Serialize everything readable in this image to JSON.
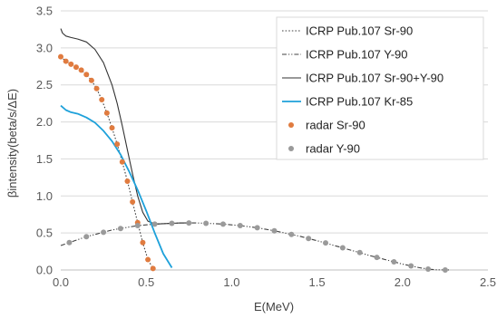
{
  "chart_data": {
    "type": "line",
    "xlabel": "E(MeV)",
    "ylabel": "βintensity(beta/s/ΔE)",
    "xlim": [
      0,
      2.5
    ],
    "ylim": [
      0,
      3.5
    ],
    "xticks": [
      "0.0",
      "0.5",
      "1.0",
      "1.5",
      "2.0",
      "2.5"
    ],
    "yticks": [
      "0.0",
      "0.5",
      "1.0",
      "1.5",
      "2.0",
      "2.5",
      "3.0",
      "3.5"
    ],
    "grid": "horizontal",
    "legend_position": "top-right",
    "series": [
      {
        "name": "ICRP Pub.107 Sr-90",
        "style": "dotted",
        "color": "#404040",
        "x": [
          0.0,
          0.03,
          0.06,
          0.09,
          0.12,
          0.15,
          0.18,
          0.21,
          0.24,
          0.27,
          0.3,
          0.33,
          0.36,
          0.39,
          0.42,
          0.45,
          0.48,
          0.51,
          0.54,
          0.546
        ],
        "y": [
          2.88,
          2.82,
          2.78,
          2.74,
          2.7,
          2.64,
          2.56,
          2.45,
          2.3,
          2.12,
          1.92,
          1.7,
          1.46,
          1.2,
          0.92,
          0.64,
          0.37,
          0.14,
          0.02,
          0.0
        ]
      },
      {
        "name": "ICRP Pub.107 Y-90",
        "style": "dash-dot-dot",
        "color": "#404040",
        "x": [
          0.0,
          0.05,
          0.1,
          0.15,
          0.2,
          0.25,
          0.3,
          0.35,
          0.4,
          0.45,
          0.5,
          0.55,
          0.6,
          0.65,
          0.7,
          0.75,
          0.8,
          0.85,
          0.9,
          0.95,
          1.0,
          1.05,
          1.1,
          1.15,
          1.2,
          1.25,
          1.3,
          1.35,
          1.4,
          1.45,
          1.5,
          1.55,
          1.6,
          1.65,
          1.7,
          1.75,
          1.8,
          1.85,
          1.9,
          1.95,
          2.0,
          2.05,
          2.1,
          2.15,
          2.2,
          2.28
        ],
        "y": [
          0.33,
          0.37,
          0.41,
          0.45,
          0.48,
          0.51,
          0.54,
          0.56,
          0.58,
          0.6,
          0.61,
          0.62,
          0.625,
          0.63,
          0.635,
          0.635,
          0.635,
          0.63,
          0.625,
          0.62,
          0.61,
          0.6,
          0.585,
          0.57,
          0.55,
          0.53,
          0.505,
          0.48,
          0.455,
          0.425,
          0.395,
          0.365,
          0.33,
          0.3,
          0.265,
          0.235,
          0.2,
          0.17,
          0.14,
          0.11,
          0.08,
          0.055,
          0.03,
          0.012,
          0.003,
          0.0
        ]
      },
      {
        "name": "ICRP Pub.107 Sr-90+Y-90",
        "style": "solid",
        "color": "#333333",
        "x": [
          0.0,
          0.01,
          0.03,
          0.06,
          0.1,
          0.15,
          0.2,
          0.25,
          0.3,
          0.33,
          0.36,
          0.39,
          0.42,
          0.45,
          0.48,
          0.51,
          0.55,
          0.6,
          0.65,
          0.7,
          0.75
        ],
        "y": [
          3.26,
          3.2,
          3.16,
          3.14,
          3.12,
          3.08,
          2.98,
          2.8,
          2.5,
          2.25,
          1.95,
          1.62,
          1.3,
          1.0,
          0.78,
          0.66,
          0.62,
          0.625,
          0.63,
          0.635,
          0.635
        ]
      },
      {
        "name": "ICRP Pub.107 Kr-85",
        "style": "solid",
        "color": "#1EA1DA",
        "x": [
          0.0,
          0.03,
          0.06,
          0.1,
          0.15,
          0.2,
          0.25,
          0.3,
          0.35,
          0.4,
          0.45,
          0.5,
          0.55,
          0.6,
          0.65
        ],
        "y": [
          2.22,
          2.16,
          2.13,
          2.11,
          2.06,
          1.99,
          1.88,
          1.74,
          1.56,
          1.33,
          1.08,
          0.8,
          0.5,
          0.22,
          0.03
        ]
      },
      {
        "name": "radar Sr-90",
        "style": "markers",
        "color": "#E07B3F",
        "x": [
          0.0,
          0.03,
          0.06,
          0.09,
          0.12,
          0.15,
          0.18,
          0.21,
          0.24,
          0.27,
          0.3,
          0.33,
          0.36,
          0.39,
          0.42,
          0.45,
          0.48,
          0.51,
          0.54
        ],
        "y": [
          2.88,
          2.82,
          2.78,
          2.74,
          2.7,
          2.64,
          2.56,
          2.45,
          2.3,
          2.12,
          1.92,
          1.7,
          1.46,
          1.2,
          0.92,
          0.64,
          0.37,
          0.14,
          0.02
        ]
      },
      {
        "name": "radar Y-90",
        "style": "markers",
        "color": "#9A9A9A",
        "x": [
          0.05,
          0.15,
          0.25,
          0.35,
          0.45,
          0.55,
          0.65,
          0.75,
          0.85,
          0.95,
          1.05,
          1.15,
          1.25,
          1.35,
          1.45,
          1.55,
          1.65,
          1.75,
          1.85,
          1.95,
          2.05,
          2.15,
          2.25
        ],
        "y": [
          0.37,
          0.45,
          0.51,
          0.56,
          0.6,
          0.62,
          0.63,
          0.635,
          0.63,
          0.62,
          0.6,
          0.57,
          0.53,
          0.48,
          0.425,
          0.365,
          0.3,
          0.235,
          0.17,
          0.11,
          0.055,
          0.012,
          0.0
        ]
      }
    ]
  }
}
